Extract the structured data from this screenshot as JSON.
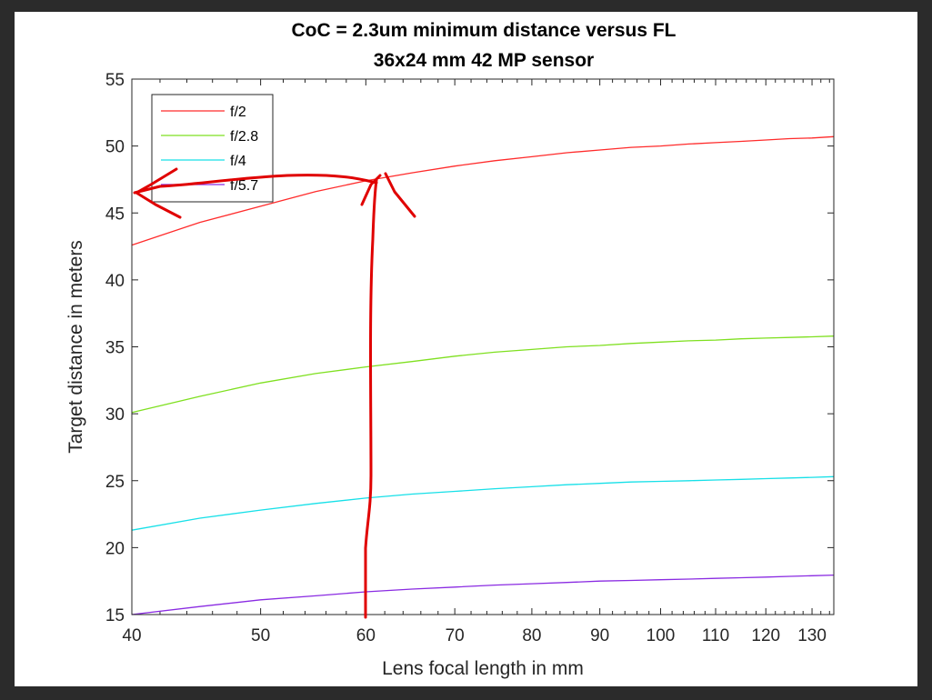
{
  "chart_data": {
    "type": "line",
    "title": "CoC = 2.3um minimum distance versus FL",
    "subtitle": "36x24 mm 42 MP sensor",
    "xlabel": "Lens focal length in mm",
    "ylabel": "Target distance in meters",
    "xscale": "log",
    "xlim": [
      40,
      135
    ],
    "ylim": [
      15,
      55
    ],
    "xticks": [
      40,
      50,
      60,
      70,
      80,
      90,
      100,
      110,
      120,
      130
    ],
    "yticks": [
      15,
      20,
      25,
      30,
      35,
      40,
      45,
      50,
      55
    ],
    "grid": false,
    "legend_position": "top-left",
    "x": [
      40,
      45,
      50,
      55,
      60,
      65,
      70,
      75,
      80,
      85,
      90,
      95,
      100,
      105,
      110,
      115,
      120,
      125,
      130,
      135
    ],
    "series": [
      {
        "name": "f/2",
        "color": "#ff2b2b",
        "values": [
          42.6,
          44.3,
          45.5,
          46.6,
          47.4,
          48.0,
          48.5,
          48.9,
          49.2,
          49.5,
          49.7,
          49.9,
          50.0,
          50.15,
          50.25,
          50.35,
          50.45,
          50.55,
          50.6,
          50.7
        ]
      },
      {
        "name": "f/2.8",
        "color": "#7fe020",
        "values": [
          30.1,
          31.3,
          32.3,
          33.0,
          33.5,
          33.9,
          34.3,
          34.6,
          34.8,
          35.0,
          35.1,
          35.25,
          35.35,
          35.45,
          35.5,
          35.6,
          35.65,
          35.7,
          35.75,
          35.8
        ]
      },
      {
        "name": "f/4",
        "color": "#17e0e8",
        "values": [
          21.3,
          22.2,
          22.8,
          23.3,
          23.7,
          24.0,
          24.2,
          24.4,
          24.55,
          24.7,
          24.8,
          24.9,
          24.95,
          25.0,
          25.05,
          25.1,
          25.15,
          25.2,
          25.25,
          25.3
        ]
      },
      {
        "name": "f/5.7",
        "color": "#8a2be2",
        "values": [
          15.0,
          15.6,
          16.1,
          16.4,
          16.7,
          16.9,
          17.05,
          17.2,
          17.3,
          17.4,
          17.5,
          17.55,
          17.6,
          17.65,
          17.7,
          17.75,
          17.8,
          17.85,
          17.9,
          17.95
        ]
      }
    ],
    "annotation_color": "#e00000"
  }
}
